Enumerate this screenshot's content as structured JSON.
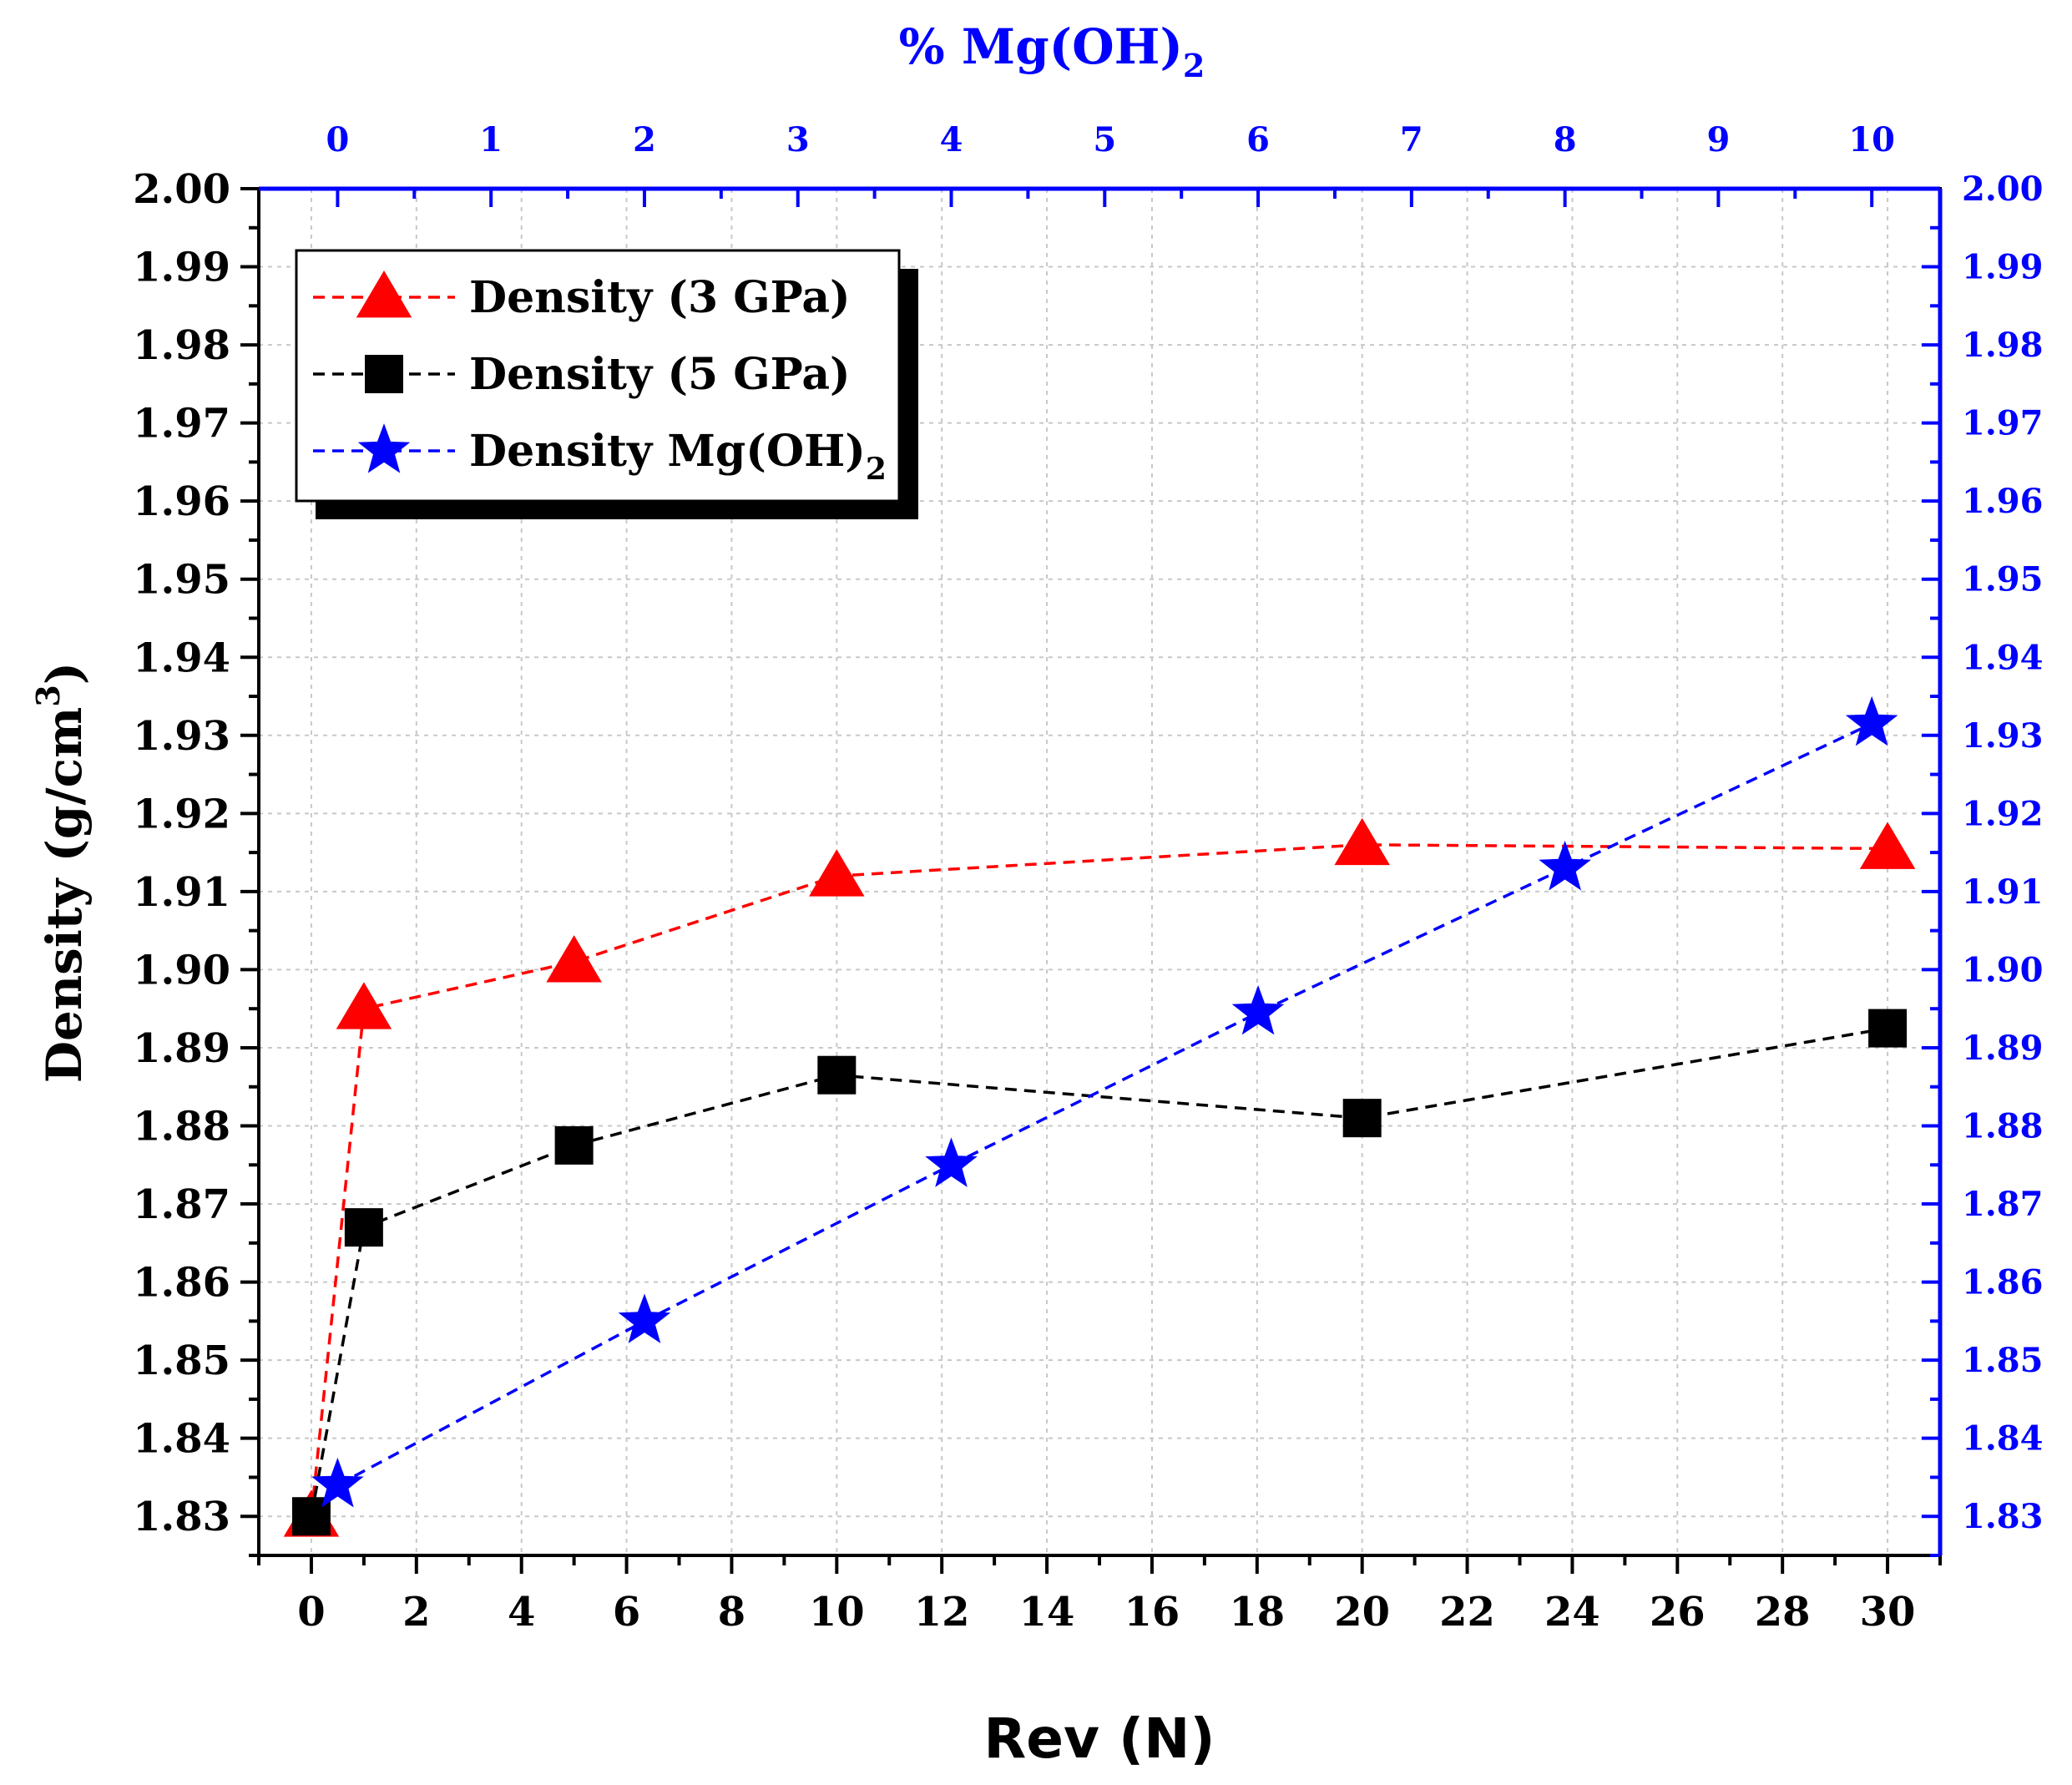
{
  "chart_data": {
    "type": "line",
    "xlabel": "Rev (N)",
    "ylabel_main": "Density (g/cm",
    "ylabel_sup": "3",
    "ylabel_close": ")",
    "top_xlabel_main": "% Mg(OH)",
    "top_xlabel_sub": "2",
    "xlim": [
      -1,
      31
    ],
    "ylim": [
      1.825,
      2.0
    ],
    "top_xlim": [
      0,
      10
    ],
    "x_ticks": [
      0,
      2,
      4,
      6,
      8,
      10,
      12,
      14,
      16,
      18,
      20,
      22,
      24,
      26,
      28,
      30
    ],
    "x_tick_labels": [
      "0",
      "2",
      "4",
      "6",
      "8",
      "10",
      "12",
      "14",
      "16",
      "18",
      "20",
      "22",
      "24",
      "26",
      "28",
      "30"
    ],
    "top_x_ticks": [
      0,
      1,
      2,
      3,
      4,
      5,
      6,
      7,
      8,
      9,
      10
    ],
    "top_x_tick_labels": [
      "0",
      "1",
      "2",
      "3",
      "4",
      "5",
      "6",
      "7",
      "8",
      "9",
      "10"
    ],
    "y_ticks": [
      1.83,
      1.84,
      1.85,
      1.86,
      1.87,
      1.88,
      1.89,
      1.9,
      1.91,
      1.92,
      1.93,
      1.94,
      1.95,
      1.96,
      1.97,
      1.98,
      1.99,
      2.0
    ],
    "y_tick_labels": [
      "1.83",
      "1.84",
      "1.85",
      "1.86",
      "1.87",
      "1.88",
      "1.89",
      "1.90",
      "1.91",
      "1.92",
      "1.93",
      "1.94",
      "1.95",
      "1.96",
      "1.97",
      "1.98",
      "1.99",
      "2.00"
    ],
    "grid": true,
    "legend_position": "top-left",
    "series": [
      {
        "name": "Density (3 GPa)",
        "legend_main": "Density (3 GPa)",
        "legend_sub": "",
        "color": "#ff0000",
        "marker": "triangle",
        "axis": "bottom",
        "x": [
          0,
          1,
          5,
          10,
          20,
          30
        ],
        "values": [
          1.83,
          1.895,
          1.901,
          1.912,
          1.916,
          1.9155
        ]
      },
      {
        "name": "Density (5 GPa)",
        "legend_main": "Density (5 GPa)",
        "legend_sub": "",
        "color": "#000000",
        "marker": "square",
        "axis": "bottom",
        "x": [
          0,
          1,
          5,
          10,
          20,
          30
        ],
        "values": [
          1.83,
          1.867,
          1.8775,
          1.8865,
          1.881,
          1.8925
        ]
      },
      {
        "name": "Density Mg(OH)2",
        "legend_main": "Density Mg(OH)",
        "legend_sub": "2",
        "color": "#0000ff",
        "marker": "star",
        "axis": "top",
        "x": [
          0,
          2,
          4,
          6,
          8,
          10
        ],
        "values": [
          1.834,
          1.855,
          1.875,
          1.8945,
          1.913,
          1.9315
        ]
      }
    ]
  }
}
